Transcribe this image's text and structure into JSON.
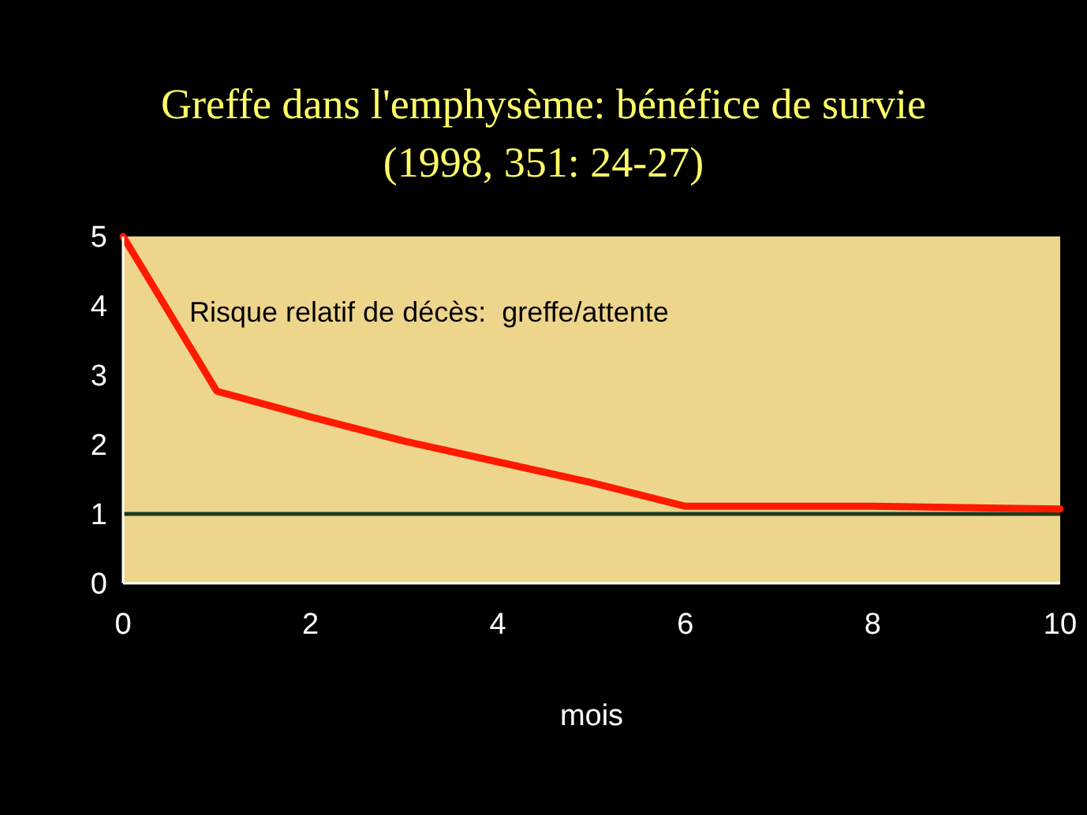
{
  "chart_data": {
    "type": "line",
    "title": "Greffe dans l'emphysème: bénéfice de survie",
    "subtitle": "(1998, 351: 24-27)",
    "xlabel": "mois",
    "annotations": [
      "Risque relatif de décès:  greffe/attente"
    ],
    "x": [
      0,
      1,
      2,
      3,
      4,
      5,
      6,
      8,
      10
    ],
    "series": [
      {
        "color": "#ff1a00",
        "values": [
          5,
          2.77,
          2.4,
          2.05,
          1.75,
          1.45,
          1.11,
          1.11,
          1.07
        ]
      }
    ],
    "xlim": [
      0,
      10
    ],
    "xticks": [
      0,
      2,
      4,
      6,
      8,
      10
    ],
    "ylim": [
      0,
      5
    ],
    "yticks": [
      0,
      1,
      2,
      3,
      4,
      5
    ],
    "ref_lines": [
      {
        "axis": "y",
        "value": 1,
        "color": "#1e3a1e"
      }
    ],
    "grid": false,
    "line_style": "solid"
  }
}
